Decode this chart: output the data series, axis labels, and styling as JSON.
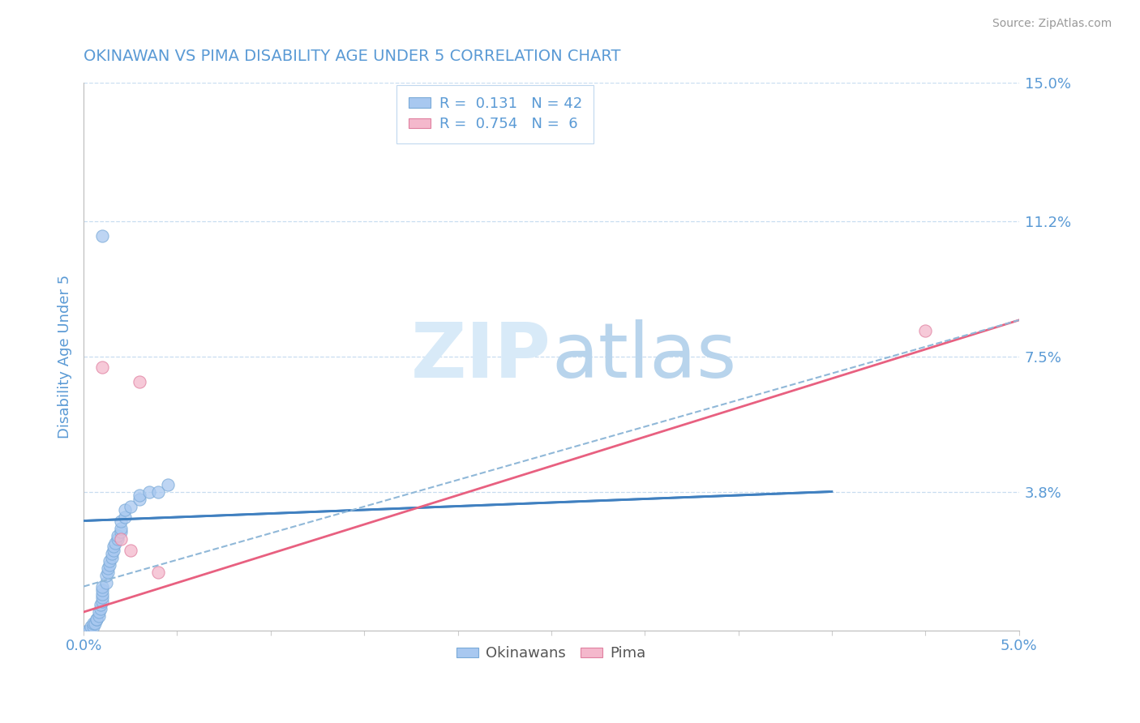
{
  "title": "OKINAWAN VS PIMA DISABILITY AGE UNDER 5 CORRELATION CHART",
  "source": "Source: ZipAtlas.com",
  "ylabel": "Disability Age Under 5",
  "xlim": [
    0.0,
    0.05
  ],
  "ylim": [
    0.0,
    0.15
  ],
  "yticks": [
    0.0,
    0.038,
    0.075,
    0.112,
    0.15
  ],
  "ytick_labels": [
    "",
    "3.8%",
    "7.5%",
    "11.2%",
    "15.0%"
  ],
  "title_color": "#3a7ab5",
  "axis_color": "#5a9ad5",
  "legend_entries": [
    {
      "label": "R =  0.131   N = 42",
      "color": "#a8c8f0"
    },
    {
      "label": "R =  0.754   N =  6",
      "color": "#f0a8c0"
    }
  ],
  "okinawan_points": [
    [
      0.0002,
      0.0
    ],
    [
      0.0003,
      0.0
    ],
    [
      0.0004,
      0.001
    ],
    [
      0.0005,
      0.001
    ],
    [
      0.0005,
      0.002
    ],
    [
      0.0006,
      0.002
    ],
    [
      0.0007,
      0.003
    ],
    [
      0.0007,
      0.003
    ],
    [
      0.0008,
      0.004
    ],
    [
      0.0008,
      0.005
    ],
    [
      0.0009,
      0.006
    ],
    [
      0.0009,
      0.007
    ],
    [
      0.001,
      0.008
    ],
    [
      0.001,
      0.009
    ],
    [
      0.001,
      0.01
    ],
    [
      0.001,
      0.011
    ],
    [
      0.001,
      0.012
    ],
    [
      0.0012,
      0.013
    ],
    [
      0.0012,
      0.015
    ],
    [
      0.0013,
      0.016
    ],
    [
      0.0013,
      0.017
    ],
    [
      0.0014,
      0.018
    ],
    [
      0.0014,
      0.019
    ],
    [
      0.0015,
      0.02
    ],
    [
      0.0015,
      0.021
    ],
    [
      0.0016,
      0.022
    ],
    [
      0.0016,
      0.023
    ],
    [
      0.0017,
      0.024
    ],
    [
      0.0018,
      0.025
    ],
    [
      0.0018,
      0.026
    ],
    [
      0.002,
      0.027
    ],
    [
      0.002,
      0.028
    ],
    [
      0.002,
      0.03
    ],
    [
      0.0022,
      0.031
    ],
    [
      0.0022,
      0.033
    ],
    [
      0.0025,
      0.034
    ],
    [
      0.003,
      0.036
    ],
    [
      0.003,
      0.037
    ],
    [
      0.0035,
      0.038
    ],
    [
      0.004,
      0.038
    ],
    [
      0.0045,
      0.04
    ],
    [
      0.001,
      0.108
    ]
  ],
  "pima_points": [
    [
      0.001,
      0.072
    ],
    [
      0.002,
      0.025
    ],
    [
      0.0025,
      0.022
    ],
    [
      0.003,
      0.068
    ],
    [
      0.004,
      0.016
    ],
    [
      0.045,
      0.082
    ]
  ],
  "okinawan_color": "#a8c8f0",
  "okinawan_edge": "#7aaad8",
  "pima_color": "#f4b8cc",
  "pima_edge": "#e080a0",
  "trend_okinawan_color": "#4080c0",
  "trend_pima_color": "#e86080",
  "trend_dash_color": "#90b8d8",
  "background_color": "#ffffff",
  "grid_color": "#c8ddf0",
  "watermark_color": "#d8eaf8",
  "ok_trend_x0": 0.0,
  "ok_trend_y0": 0.03,
  "ok_trend_x1": 0.04,
  "ok_trend_y1": 0.038,
  "pima_trend_x0": 0.0,
  "pima_trend_y0": 0.005,
  "pima_trend_x1": 0.05,
  "pima_trend_y1": 0.085,
  "dash_trend_x0": 0.0,
  "dash_trend_y0": 0.012,
  "dash_trend_x1": 0.05,
  "dash_trend_y1": 0.085
}
